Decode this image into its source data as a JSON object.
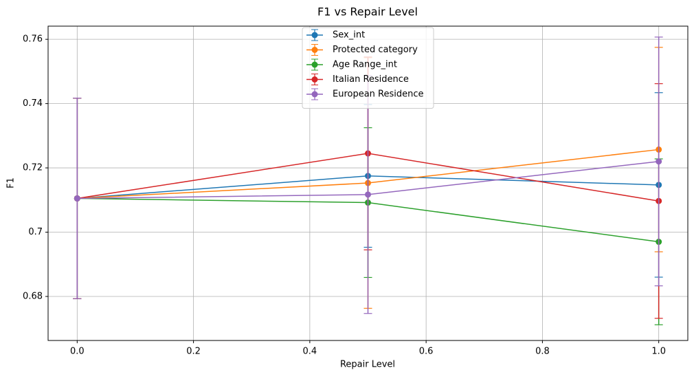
{
  "chart_data": {
    "type": "line",
    "title": "F1 vs Repair Level",
    "x_label": "Repair Level",
    "y_label": "F1",
    "x": [
      0.0,
      0.5,
      1.0
    ],
    "series": [
      {
        "name": "Sex_int",
        "color": "#1f77b4",
        "values": [
          0.7105,
          0.7175,
          0.7147
        ],
        "errors": [
          0.0312,
          0.0222,
          0.0287
        ]
      },
      {
        "name": "Protected category",
        "color": "#ff7f0e",
        "values": [
          0.7105,
          0.7153,
          0.7257
        ],
        "errors": [
          0.0312,
          0.039,
          0.0318
        ]
      },
      {
        "name": "Age Range_int",
        "color": "#2ca02c",
        "values": [
          0.7105,
          0.7092,
          0.697
        ],
        "errors": [
          0.0312,
          0.0233,
          0.0258
        ]
      },
      {
        "name": "Italian Residence",
        "color": "#d62728",
        "values": [
          0.7105,
          0.7245,
          0.7097
        ],
        "errors": [
          0.0312,
          0.03,
          0.0365
        ]
      },
      {
        "name": "European Residence",
        "color": "#9467bd",
        "values": [
          0.7105,
          0.7117,
          0.722
        ],
        "errors": [
          0.0312,
          0.037,
          0.0387
        ]
      }
    ],
    "xlim": [
      -0.05,
      1.05
    ],
    "ylim": [
      0.6663,
      0.7641
    ],
    "xticks": [
      {
        "value": 0,
        "label": "0.0"
      },
      0.2,
      0.4,
      0.6,
      0.8,
      {
        "value": 1,
        "label": "1.0"
      }
    ],
    "yticks": [
      0.68,
      0.7,
      0.72,
      0.74,
      0.76
    ],
    "grid": true,
    "legend": "upper center"
  }
}
